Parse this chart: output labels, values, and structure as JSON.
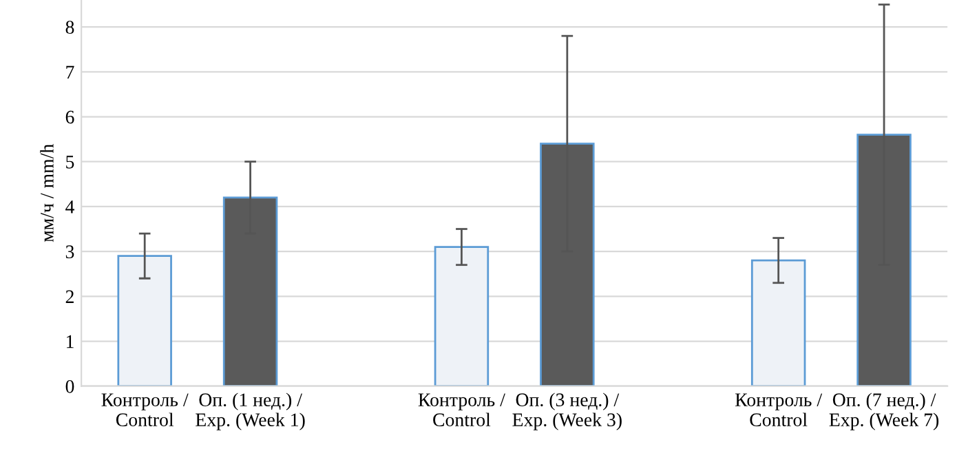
{
  "chart_data": {
    "type": "bar",
    "ylabel": "мм/ч / mm/h",
    "categories": [
      "Контроль /\nControl",
      "Оп. (1 нед.) /\nExp. (Week 1)",
      null,
      "Контроль /\nControl",
      "Оп. (3 нед.) /\nExp. (Week 3)",
      null,
      "Контроль /\nControl",
      "Оп. (7 нед.) /\nExp. (Week 7)"
    ],
    "values": [
      2.9,
      4.2,
      null,
      3.1,
      5.4,
      null,
      2.8,
      5.6
    ],
    "errors": [
      0.5,
      0.8,
      null,
      0.4,
      2.4,
      null,
      0.5,
      2.9
    ],
    "colors": [
      "#eef2f7",
      "#5a5a5a",
      "#eef2f7",
      "#eef2f7",
      "#5a5a5a",
      "#eef2f7",
      "#eef2f7",
      "#5a5a5a"
    ],
    "ylim": [
      0,
      8.6
    ],
    "yticks": [
      0,
      1,
      2,
      3,
      4,
      5,
      6,
      7,
      8
    ],
    "grid": "y"
  }
}
